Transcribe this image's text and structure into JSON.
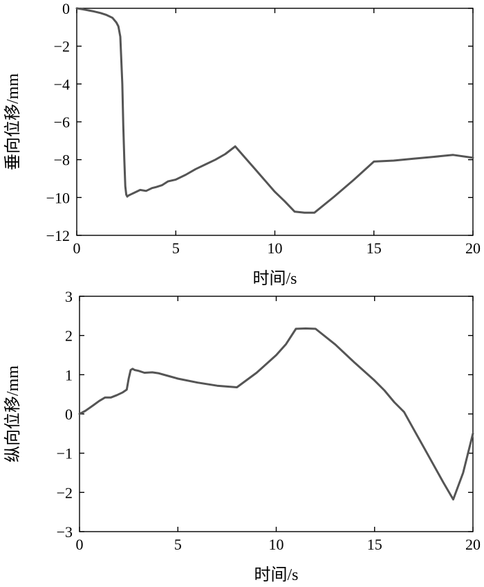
{
  "chart_data": [
    {
      "type": "line",
      "xlabel": "时间/s",
      "ylabel": "垂向位移/mm",
      "xlim": [
        0,
        20
      ],
      "ylim": [
        -12,
        0
      ],
      "xticks": [
        0,
        5,
        10,
        15,
        20
      ],
      "yticks": [
        0,
        -2,
        -4,
        -6,
        -8,
        -10,
        -12
      ],
      "xtick_labels": [
        "0",
        "5",
        "10",
        "15",
        "20"
      ],
      "ytick_labels": [
        "0",
        "−2",
        "−4",
        "−6",
        "−8",
        "−10",
        "−12"
      ],
      "grid": false,
      "line_color": "#555555",
      "series": [
        {
          "x": [
            0,
            0.3,
            0.8,
            1.2,
            1.5,
            1.8,
            2.0,
            2.1,
            2.2,
            2.3,
            2.35,
            2.4,
            2.45,
            2.5,
            2.55,
            2.6,
            2.7,
            2.9,
            3.2,
            3.5,
            3.8,
            4.0,
            4.3,
            4.6,
            5.0,
            5.5,
            6.0,
            6.5,
            7.0,
            7.5,
            8.0,
            8.5,
            9.0,
            9.5,
            10.0,
            10.5,
            11.0,
            11.5,
            12.0,
            13.0,
            14.0,
            15.0,
            16.0,
            17.0,
            18.0,
            19.0,
            20.0
          ],
          "y": [
            0,
            -0.05,
            -0.15,
            -0.25,
            -0.35,
            -0.5,
            -0.75,
            -0.95,
            -1.5,
            -4.0,
            -6.2,
            -8.0,
            -9.4,
            -9.85,
            -9.95,
            -9.9,
            -9.85,
            -9.75,
            -9.6,
            -9.65,
            -9.5,
            -9.45,
            -9.35,
            -9.15,
            -9.05,
            -8.8,
            -8.5,
            -8.25,
            -8.0,
            -7.7,
            -7.3,
            -7.9,
            -8.5,
            -9.1,
            -9.7,
            -10.2,
            -10.75,
            -10.8,
            -10.8,
            -9.95,
            -9.05,
            -8.1,
            -8.05,
            -7.95,
            -7.85,
            -7.75,
            -7.9
          ]
        }
      ]
    },
    {
      "type": "line",
      "xlabel": "时间/s",
      "ylabel": "纵向位移/mm",
      "xlim": [
        0,
        20
      ],
      "ylim": [
        -3,
        3
      ],
      "xticks": [
        0,
        5,
        10,
        15,
        20
      ],
      "yticks": [
        3,
        2,
        1,
        0,
        -1,
        -2,
        -3
      ],
      "xtick_labels": [
        "0",
        "5",
        "10",
        "15",
        "20"
      ],
      "ytick_labels": [
        "3",
        "2",
        "1",
        "0",
        "−1",
        "−2",
        "−3"
      ],
      "grid": false,
      "line_color": "#555555",
      "series": [
        {
          "x": [
            0,
            0.3,
            0.7,
            1.0,
            1.3,
            1.6,
            1.9,
            2.2,
            2.4,
            2.5,
            2.6,
            2.7,
            2.8,
            3.0,
            3.3,
            3.7,
            4.0,
            4.5,
            5.0,
            6.0,
            7.0,
            8.0,
            9.0,
            10.0,
            10.5,
            11.0,
            11.5,
            12.0,
            13.0,
            14.0,
            15.0,
            15.5,
            16.0,
            16.5,
            17.0,
            17.5,
            18.0,
            18.5,
            19.0,
            19.5,
            20.0
          ],
          "y": [
            0,
            0.08,
            0.22,
            0.33,
            0.42,
            0.42,
            0.48,
            0.55,
            0.62,
            0.9,
            1.12,
            1.15,
            1.12,
            1.1,
            1.05,
            1.06,
            1.04,
            0.97,
            0.9,
            0.8,
            0.72,
            0.68,
            1.05,
            1.5,
            1.78,
            2.17,
            2.18,
            2.17,
            1.77,
            1.3,
            0.85,
            0.6,
            0.3,
            0.05,
            -0.4,
            -0.85,
            -1.3,
            -1.75,
            -2.18,
            -1.5,
            -0.5
          ]
        }
      ]
    }
  ]
}
